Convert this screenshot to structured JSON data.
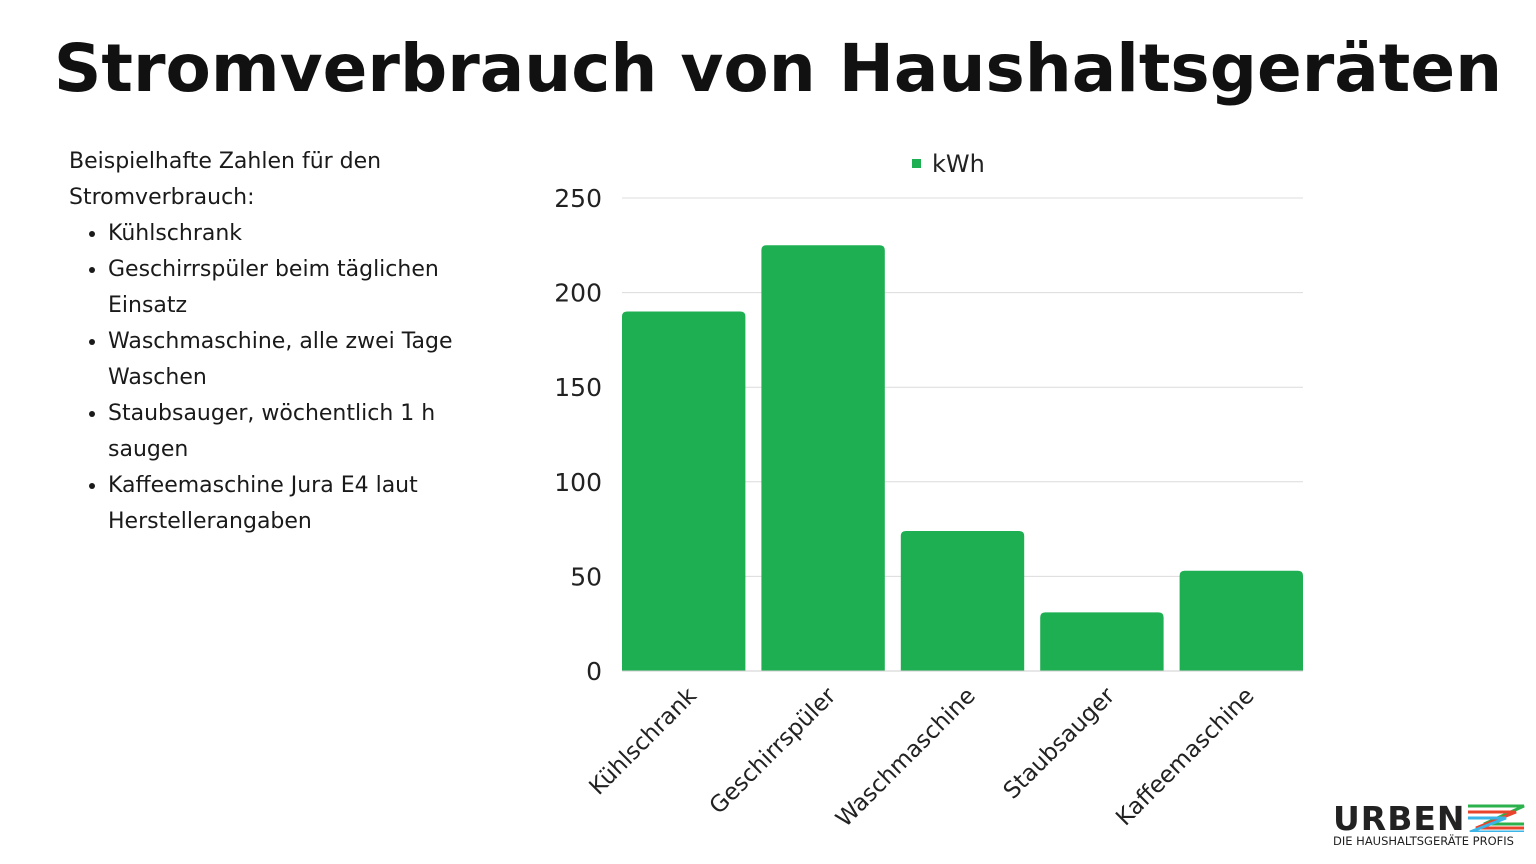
{
  "title": "Stromverbrauch von Haushaltsgeräten",
  "notes": {
    "intro": "Beispielhafte Zahlen für den Stromverbrauch:",
    "items": [
      "Kühlschrank",
      "Geschirrspüler beim täglichen Einsatz",
      "Waschmaschine, alle zwei Tage Waschen",
      "Staubsauger, wöchentlich 1 h saugen",
      "Kaffeemaschine Jura E4 laut Herstellerangaben"
    ]
  },
  "logo": {
    "name": "URBEN",
    "tagline": "DIE HAUSHALTSGERÄTE PROFIS"
  },
  "chart_data": {
    "type": "bar",
    "categories": [
      "Kühlschrank",
      "Geschirrspüler",
      "Waschmaschine",
      "Staubsauger",
      "Kaffeemaschine"
    ],
    "series": [
      {
        "name": "kWh",
        "values": [
          190,
          225,
          74,
          31,
          53
        ],
        "color": "#1faf53"
      }
    ],
    "yticks": [
      0,
      50,
      100,
      150,
      200,
      250
    ],
    "ylim": [
      0,
      250
    ],
    "grid": true,
    "legend": "top"
  }
}
